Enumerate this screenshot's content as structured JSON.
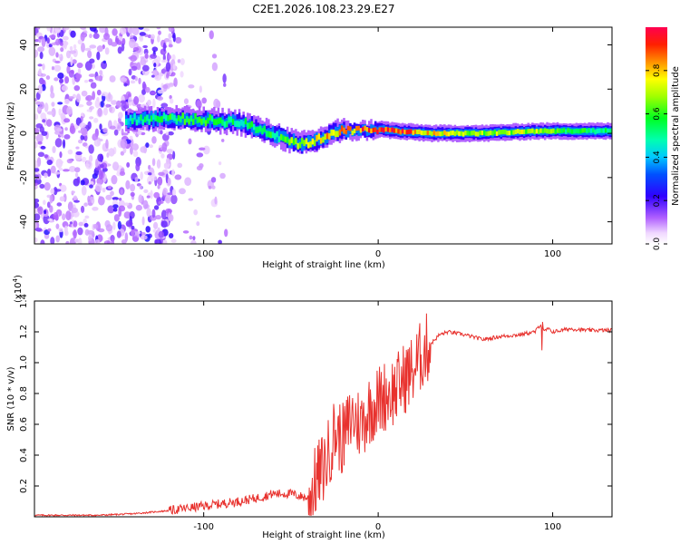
{
  "title": "C2E1.2026.108.23.29.E27",
  "chart_data": [
    {
      "type": "heatmap",
      "name": "spectrogram",
      "xlabel": "Height of straight line (km)",
      "ylabel": "Frequency (Hz)",
      "xlim": [
        -197,
        134
      ],
      "ylim": [
        -50,
        48
      ],
      "xticks": [
        -100,
        0,
        100
      ],
      "xtick_labels": [
        "-100",
        "0",
        "100"
      ],
      "yticks": [
        -40,
        -20,
        0,
        20,
        40
      ],
      "ytick_labels": [
        "-40",
        "-20",
        "0",
        "20",
        "40"
      ],
      "colorbar": {
        "label": "Normalized spectral amplitude",
        "range": [
          0,
          1
        ],
        "ticks": [
          0.0,
          0.2,
          0.4,
          0.6,
          0.8
        ],
        "tick_labels": [
          "0.0",
          "0.2",
          "0.4",
          "0.6",
          "0.8"
        ]
      },
      "ridge": {
        "description_points": [
          {
            "x": -145,
            "freq": 6,
            "amp": 0.45
          },
          {
            "x": -120,
            "freq": 7,
            "amp": 0.55
          },
          {
            "x": -100,
            "freq": 6,
            "amp": 0.55
          },
          {
            "x": -80,
            "freq": 5,
            "amp": 0.5
          },
          {
            "x": -65,
            "freq": 1,
            "amp": 0.55
          },
          {
            "x": -55,
            "freq": -2,
            "amp": 0.55
          },
          {
            "x": -45,
            "freq": -5,
            "amp": 0.7
          },
          {
            "x": -35,
            "freq": -3,
            "amp": 0.75
          },
          {
            "x": -25,
            "freq": 1,
            "amp": 0.8
          },
          {
            "x": -15,
            "freq": 1,
            "amp": 0.85
          },
          {
            "x": 0,
            "freq": 2,
            "amp": 0.9
          },
          {
            "x": 10,
            "freq": 1,
            "amp": 0.9
          },
          {
            "x": 30,
            "freq": 0,
            "amp": 0.75
          },
          {
            "x": 60,
            "freq": 0,
            "amp": 0.65
          },
          {
            "x": 90,
            "freq": 1,
            "amp": 0.7
          },
          {
            "x": 110,
            "freq": 1,
            "amp": 0.55
          },
          {
            "x": 134,
            "freq": 1,
            "amp": 0.5
          }
        ]
      }
    },
    {
      "type": "line",
      "name": "snr",
      "xlabel": "Height of straight line (km)",
      "ylabel": "SNR (10 * v/v)",
      "yscale_label": "(x10",
      "yscale_exp": "4",
      "yscale_close": ")",
      "xlim": [
        -197,
        134
      ],
      "ylim": [
        0,
        1.4
      ],
      "xticks": [
        -100,
        0,
        100
      ],
      "xtick_labels": [
        "-100",
        "0",
        "100"
      ],
      "yticks": [
        0.2,
        0.4,
        0.6,
        0.8,
        1.0,
        1.2,
        1.4
      ],
      "ytick_labels": [
        "0.2",
        "0.4",
        "0.6",
        "0.8",
        "1.0",
        "1.2",
        "1.4"
      ],
      "series": [
        {
          "name": "SNR",
          "color": "#e8322e",
          "x": [
            -197,
            -160,
            -140,
            -120,
            -100,
            -80,
            -70,
            -60,
            -50,
            -40,
            -35,
            -30,
            -25,
            -20,
            -15,
            -10,
            -5,
            0,
            5,
            10,
            15,
            20,
            25,
            30,
            35,
            40,
            50,
            60,
            70,
            80,
            90,
            93,
            95,
            97,
            100,
            110,
            120,
            134
          ],
          "values": [
            0.01,
            0.01,
            0.02,
            0.04,
            0.07,
            0.1,
            0.12,
            0.15,
            0.15,
            0.12,
            0.25,
            0.35,
            0.55,
            0.5,
            0.65,
            0.6,
            0.7,
            0.75,
            0.8,
            0.82,
            0.9,
            0.95,
            1.05,
            1.12,
            1.18,
            1.2,
            1.18,
            1.15,
            1.17,
            1.18,
            1.2,
            1.25,
            1.2,
            1.22,
            1.2,
            1.22,
            1.21,
            1.21
          ]
        }
      ]
    }
  ]
}
